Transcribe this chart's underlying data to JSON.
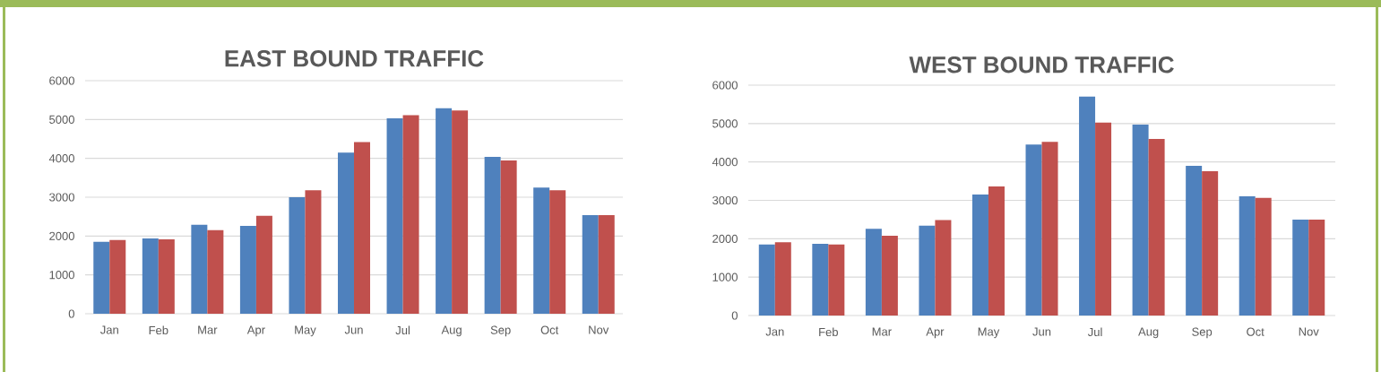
{
  "chart_data": [
    {
      "type": "bar",
      "title": "EAST BOUND TRAFFIC",
      "categories": [
        "Jan",
        "Feb",
        "Mar",
        "Apr",
        "May",
        "Jun",
        "Jul",
        "Aug",
        "Sep",
        "Oct",
        "Nov"
      ],
      "series": [
        {
          "color": "#4f81bd",
          "values": [
            1850,
            1940,
            2290,
            2260,
            3000,
            4150,
            5030,
            5290,
            4040,
            3250,
            2540
          ]
        },
        {
          "color": "#c0504d",
          "values": [
            1900,
            1915,
            2150,
            2520,
            3180,
            4420,
            5110,
            5235,
            3945,
            3180,
            2540
          ]
        }
      ],
      "ylim": [
        0,
        6000
      ],
      "yticks": [
        0,
        1000,
        2000,
        3000,
        4000,
        5000,
        6000
      ],
      "grid": "y"
    },
    {
      "type": "bar",
      "title": "WEST BOUND TRAFFIC",
      "categories": [
        "Jan",
        "Feb",
        "Mar",
        "Apr",
        "May",
        "Jun",
        "Jul",
        "Aug",
        "Sep",
        "Oct",
        "Nov"
      ],
      "series": [
        {
          "color": "#4f81bd",
          "values": [
            1850,
            1870,
            2260,
            2340,
            3150,
            4455,
            5700,
            4970,
            3900,
            3105,
            2500
          ]
        },
        {
          "color": "#c0504d",
          "values": [
            1910,
            1850,
            2080,
            2485,
            3360,
            4525,
            5025,
            4600,
            3760,
            3065,
            2500
          ]
        }
      ],
      "ylim": [
        0,
        6000
      ],
      "yticks": [
        0,
        1000,
        2000,
        3000,
        4000,
        5000,
        6000
      ],
      "grid": "y"
    }
  ]
}
